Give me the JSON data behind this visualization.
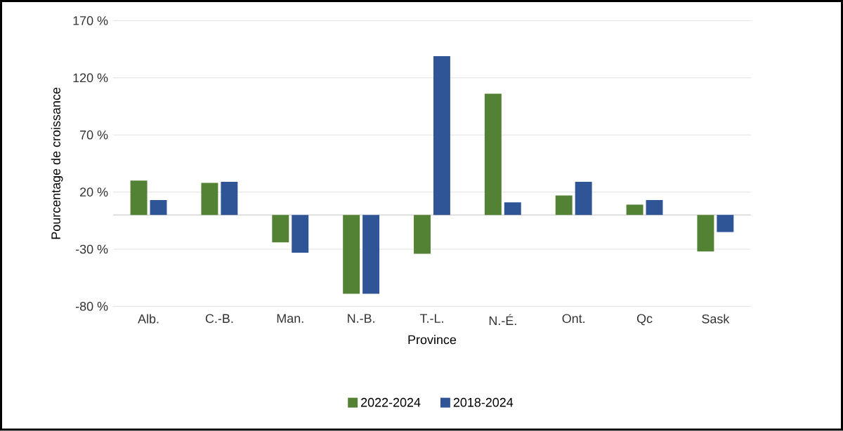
{
  "chart_data": {
    "type": "bar",
    "xlabel": "Province",
    "ylabel": "Pourcentage de croissance",
    "categories": [
      "Alb.",
      "C.-B.",
      "Man.",
      "N.-B.",
      "T.-L.",
      "N.-É.",
      "Ont.",
      "Qc",
      "Sask"
    ],
    "series": [
      {
        "name": "2022-2024",
        "color": "#548235",
        "values": [
          30,
          28,
          -24,
          -69,
          -34,
          106,
          17,
          9,
          -32
        ]
      },
      {
        "name": "2018-2024",
        "color": "#2f5597",
        "values": [
          13,
          29,
          -33,
          -69,
          139,
          11,
          29,
          13,
          -15
        ]
      }
    ],
    "ylim": [
      -80,
      170
    ],
    "yticks": [
      {
        "value": -80,
        "label": "-80 %"
      },
      {
        "value": -30,
        "label": "-30 %"
      },
      {
        "value": 20,
        "label": "20 %"
      },
      {
        "value": 70,
        "label": "70 %"
      },
      {
        "value": 120,
        "label": "120 %"
      },
      {
        "value": 170,
        "label": "170 %"
      }
    ],
    "grid": "y",
    "legend": "bottom"
  }
}
